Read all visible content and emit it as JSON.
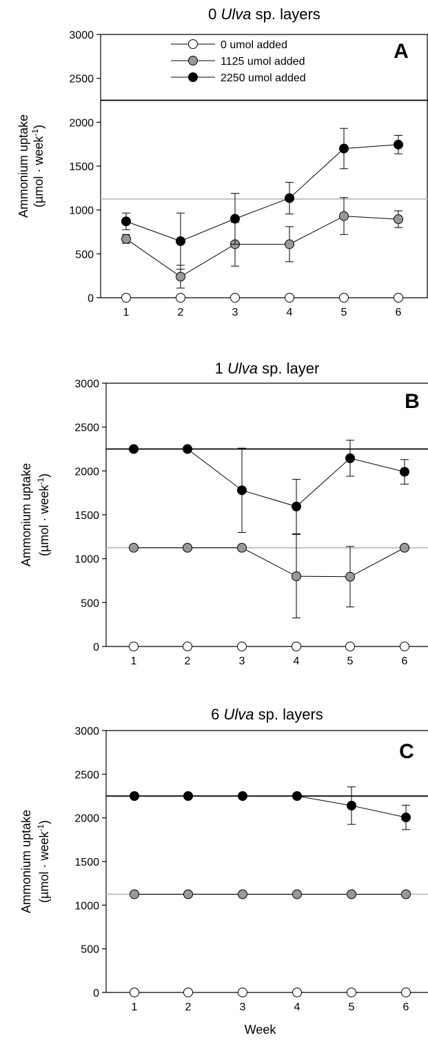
{
  "chart_data": [
    {
      "type": "line",
      "title": "0 Ulva sp. layers",
      "title_parts": [
        "0 ",
        "Ulva",
        " sp. layers"
      ],
      "panel": "A",
      "ylabel_line1": "Ammonium uptake",
      "ylabel_line2": "(µmol · week",
      "ylabel_sup": "-1",
      "ylabel_close": ")",
      "xlabel": "",
      "ylim": [
        0,
        3000
      ],
      "yticks": [
        "0",
        "500",
        "1000",
        "1500",
        "2000",
        "2500",
        "3000"
      ],
      "x": [
        "1",
        "2",
        "3",
        "4",
        "5",
        "6"
      ],
      "reference_lines": [
        {
          "value": 2250,
          "color": "#000000"
        },
        {
          "value": 1125,
          "color": "#bbbbbb"
        }
      ],
      "legend": [
        {
          "label": "0 umol added",
          "fill": "#ffffff"
        },
        {
          "label": "1125 umol added",
          "fill": "#999999"
        },
        {
          "label": "2250 umol added",
          "fill": "#000000"
        }
      ],
      "series": [
        {
          "name": "0 umol added",
          "fill": "#ffffff",
          "values": [
            0,
            0,
            0,
            0,
            0,
            0
          ],
          "err": [
            0,
            0,
            0,
            0,
            0,
            0
          ]
        },
        {
          "name": "1125 umol added",
          "fill": "#999999",
          "values": [
            670,
            240,
            610,
            610,
            930,
            895
          ],
          "err": [
            50,
            130,
            250,
            200,
            210,
            95
          ]
        },
        {
          "name": "2250 umol added",
          "fill": "#000000",
          "values": [
            870,
            645,
            900,
            1135,
            1700,
            1745
          ],
          "err": [
            95,
            320,
            290,
            180,
            230,
            105
          ]
        }
      ]
    },
    {
      "type": "line",
      "title": "1 Ulva sp. layer",
      "title_parts": [
        "1 ",
        "Ulva",
        " sp. layer"
      ],
      "panel": "B",
      "ylabel_line1": "Ammonium uptake",
      "ylabel_line2": "(µmol · week",
      "ylabel_sup": "-1",
      "ylabel_close": ")",
      "xlabel": "",
      "ylim": [
        0,
        3000
      ],
      "yticks": [
        "0",
        "500",
        "1000",
        "1500",
        "2000",
        "2500",
        "3000"
      ],
      "x": [
        "1",
        "2",
        "3",
        "4",
        "5",
        "6"
      ],
      "reference_lines": [
        {
          "value": 2250,
          "color": "#000000"
        },
        {
          "value": 1125,
          "color": "#bbbbbb"
        }
      ],
      "series": [
        {
          "name": "0 umol added",
          "fill": "#ffffff",
          "values": [
            0,
            0,
            0,
            0,
            0,
            0
          ],
          "err": [
            0,
            0,
            0,
            0,
            0,
            0
          ]
        },
        {
          "name": "1125 umol added",
          "fill": "#999999",
          "values": [
            1125,
            1125,
            1125,
            800,
            795,
            1125
          ],
          "err": [
            0,
            0,
            0,
            475,
            345,
            0
          ]
        },
        {
          "name": "2250 umol added",
          "fill": "#000000",
          "values": [
            2250,
            2250,
            1780,
            1595,
            2145,
            1990
          ],
          "err": [
            0,
            0,
            480,
            310,
            205,
            140
          ]
        }
      ]
    },
    {
      "type": "line",
      "title": "6 Ulva sp. layers",
      "title_parts": [
        "6 ",
        "Ulva",
        " sp. layers"
      ],
      "panel": "C",
      "ylabel_line1": "Ammonium uptake",
      "ylabel_line2": "(µmol · week",
      "ylabel_sup": "-1",
      "ylabel_close": ")",
      "xlabel": "Week",
      "ylim": [
        0,
        3000
      ],
      "yticks": [
        "0",
        "500",
        "1000",
        "1500",
        "2000",
        "2500",
        "3000"
      ],
      "x": [
        "1",
        "2",
        "3",
        "4",
        "5",
        "6"
      ],
      "reference_lines": [
        {
          "value": 2250,
          "color": "#000000"
        },
        {
          "value": 1125,
          "color": "#bbbbbb"
        }
      ],
      "series": [
        {
          "name": "0 umol added",
          "fill": "#ffffff",
          "values": [
            0,
            0,
            0,
            0,
            0,
            0
          ],
          "err": [
            0,
            0,
            0,
            0,
            0,
            0
          ]
        },
        {
          "name": "1125 umol added",
          "fill": "#999999",
          "values": [
            1125,
            1125,
            1125,
            1125,
            1125,
            1125
          ],
          "err": [
            0,
            0,
            0,
            0,
            0,
            0
          ]
        },
        {
          "name": "2250 umol added",
          "fill": "#000000",
          "values": [
            2250,
            2250,
            2250,
            2250,
            2140,
            2005
          ],
          "err": [
            0,
            0,
            0,
            0,
            215,
            140
          ]
        }
      ]
    }
  ]
}
